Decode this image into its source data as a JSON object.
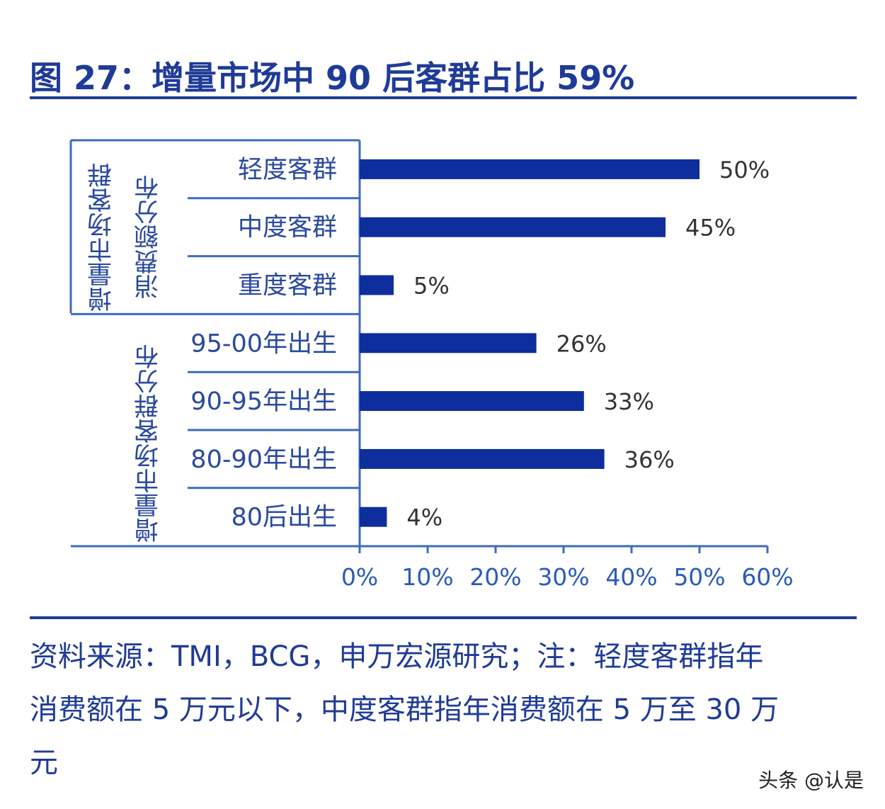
{
  "title": "图 27：增量市场中 90 后客群占比 59%",
  "chart_data": {
    "type": "bar",
    "orientation": "horizontal",
    "title": "图 27：增量市场中 90 后客群占比 59%",
    "groups": [
      {
        "label_lines": [
          "增量市场客群",
          "消费额分布"
        ],
        "categories": [
          "轻度客群",
          "中度客群",
          "重度客群"
        ],
        "values": [
          50,
          45,
          5
        ],
        "value_labels": [
          "50%",
          "45%",
          "5%"
        ]
      },
      {
        "label_lines": [
          "增量市场客群分布"
        ],
        "categories": [
          "95-00年出生",
          "90-95年出生",
          "80-90年出生",
          "80后出生"
        ],
        "values": [
          26,
          33,
          36,
          4
        ],
        "value_labels": [
          "26%",
          "33%",
          "36%",
          "4%"
        ]
      }
    ],
    "xlim": [
      0,
      60
    ],
    "xticks": [
      "0%",
      "10%",
      "20%",
      "30%",
      "40%",
      "50%",
      "60%"
    ],
    "grid": false,
    "bar_color": "#0d2e9c"
  },
  "source": "资料来源：TMI，BCG，申万宏源研究；注：轻度客群指年消费额在 5 万元以下，中度客群指年消费额在 5 万至 30 万元",
  "watermark": "头条 @认是"
}
